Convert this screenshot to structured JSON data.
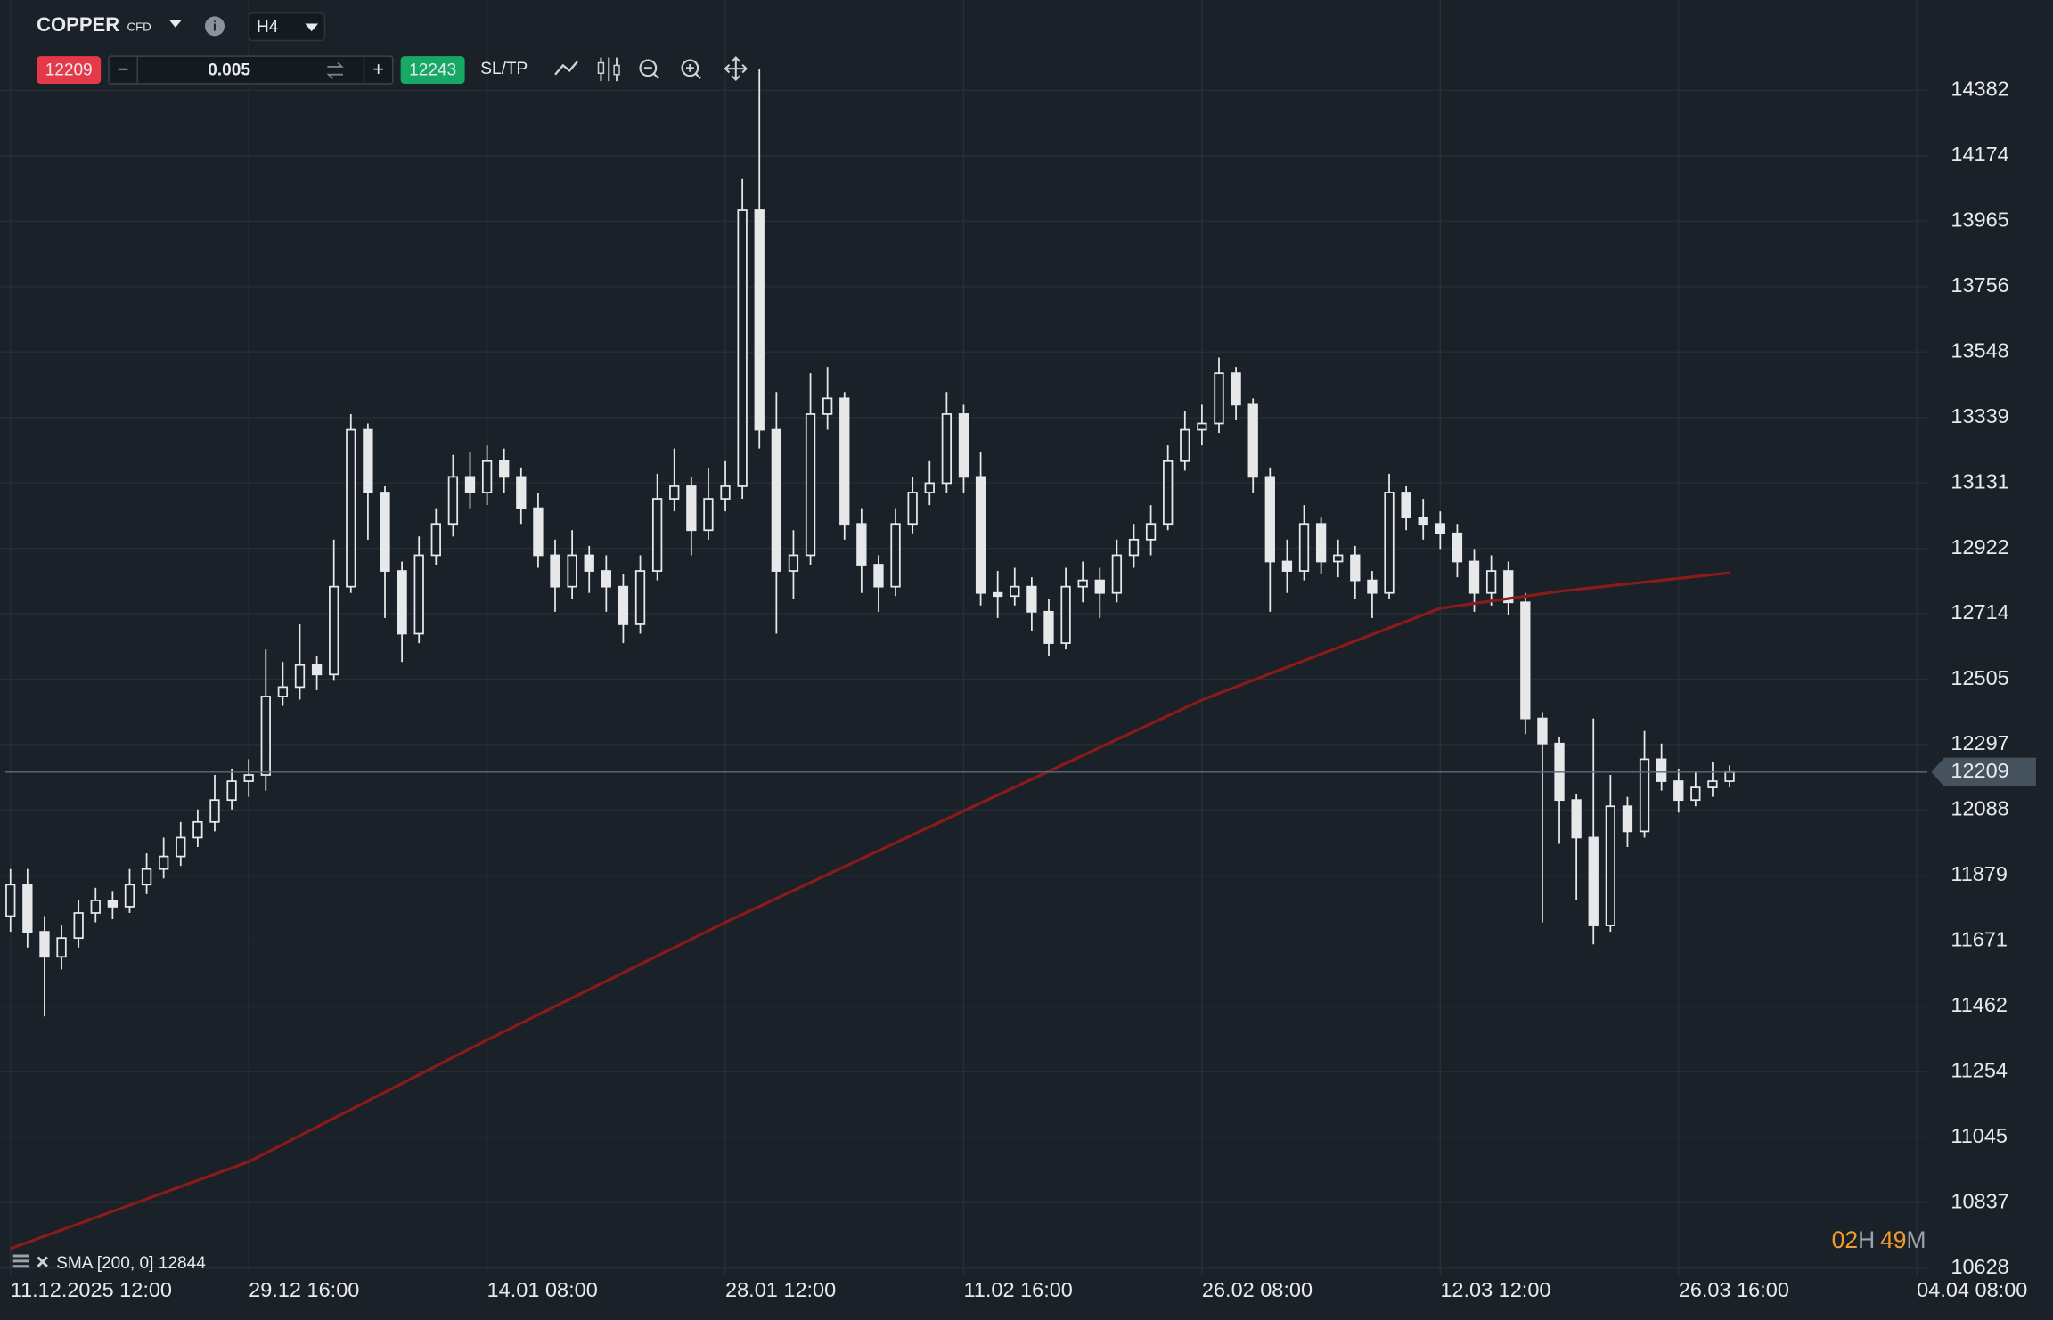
{
  "toolbar": {
    "symbol": "COPPER",
    "symbol_type": "CFD",
    "timeframe": "H4",
    "volume": "0.005",
    "buy_price": 12243,
    "sltp": "SL/TP"
  },
  "countdown": {
    "hours": "02",
    "hours_unit": "H",
    "minutes": "49",
    "minutes_unit": "M"
  },
  "chart_data": {
    "type": "candlestick",
    "current_price": 12209,
    "candle_color": "#e6e8ea",
    "price_line_color": "#5b6b78",
    "grid": true,
    "ylim": [
      10500,
      14670
    ],
    "yticks": [
      10628,
      10837,
      11045,
      11254,
      11462,
      11671,
      11879,
      12088,
      12297,
      12505,
      12714,
      12922,
      13131,
      13339,
      13548,
      13756,
      13965,
      14174,
      14382
    ],
    "xlim": [
      0,
      112
    ],
    "xticks": [
      {
        "value": 0,
        "label": "11.12.2025 12:00"
      },
      {
        "value": 14,
        "label": "29.12 16:00"
      },
      {
        "value": 28,
        "label": "14.01 08:00"
      },
      {
        "value": 42,
        "label": "28.01 12:00"
      },
      {
        "value": 56,
        "label": "11.02 16:00"
      },
      {
        "value": 70,
        "label": "26.02 08:00"
      },
      {
        "value": 84,
        "label": "12.03 12:00"
      },
      {
        "value": 98,
        "label": "26.03 16:00"
      },
      {
        "value": 112,
        "label": "04.04 08:00"
      }
    ],
    "open": [
      11750,
      11850,
      11700,
      11620,
      11680,
      11760,
      11800,
      11780,
      11850,
      11900,
      11940,
      12000,
      12050,
      12120,
      12180,
      12200,
      12450,
      12480,
      12550,
      12520,
      12800,
      13300,
      13100,
      12850,
      12650,
      12900,
      13000,
      13150,
      13100,
      13200,
      13150,
      13050,
      12900,
      12800,
      12900,
      12850,
      12800,
      12680,
      12850,
      13080,
      13120,
      12980,
      13080,
      13120,
      14000,
      13300,
      12850,
      12900,
      13350,
      13400,
      13000,
      12870,
      12800,
      13000,
      13100,
      13130,
      13350,
      13150,
      12780,
      12770,
      12800,
      12720,
      12620,
      12800,
      12820,
      12780,
      12900,
      12950,
      13000,
      13200,
      13300,
      13320,
      13480,
      13380,
      13150,
      12880,
      12850,
      13000,
      12880,
      12900,
      12820,
      12780,
      13100,
      13020,
      13000,
      12970,
      12880,
      12780,
      12850,
      12750,
      12380,
      12300,
      12120,
      12000,
      11720,
      12100,
      12020,
      12250,
      12180,
      12120,
      12160,
      12180
    ],
    "high": [
      11900,
      11900,
      11750,
      11720,
      11800,
      11840,
      11830,
      11900,
      11950,
      12000,
      12050,
      12090,
      12200,
      12220,
      12250,
      12600,
      12560,
      12680,
      12580,
      12950,
      13350,
      13320,
      13120,
      12880,
      12960,
      13050,
      13220,
      13230,
      13250,
      13240,
      13180,
      13100,
      12950,
      12980,
      12930,
      12900,
      12840,
      12900,
      13160,
      13240,
      13150,
      13180,
      13200,
      14100,
      14450,
      13420,
      12980,
      13480,
      13500,
      13420,
      13050,
      12900,
      13050,
      13150,
      13200,
      13420,
      13380,
      13230,
      12850,
      12860,
      12830,
      12760,
      12860,
      12880,
      12860,
      12950,
      13000,
      13060,
      13250,
      13360,
      13380,
      13530,
      13500,
      13400,
      13180,
      12950,
      13060,
      13020,
      12950,
      12930,
      12850,
      13160,
      13120,
      13080,
      13040,
      13000,
      12920,
      12900,
      12880,
      12780,
      12400,
      12320,
      12140,
      12380,
      12200,
      12130,
      12340,
      12300,
      12220,
      12210,
      12240,
      12230
    ],
    "low": [
      11700,
      11650,
      11430,
      11580,
      11650,
      11730,
      11740,
      11760,
      11820,
      11870,
      11910,
      11970,
      12020,
      12090,
      12130,
      12150,
      12420,
      12440,
      12470,
      12500,
      12780,
      12950,
      12700,
      12560,
      12620,
      12870,
      12960,
      13050,
      13060,
      13100,
      13000,
      12860,
      12720,
      12760,
      12780,
      12720,
      12620,
      12650,
      12820,
      13040,
      12900,
      12950,
      13040,
      13080,
      13240,
      12650,
      12760,
      12870,
      13300,
      12950,
      12780,
      12720,
      12770,
      12970,
      13060,
      13100,
      13100,
      12740,
      12700,
      12740,
      12660,
      12580,
      12600,
      12750,
      12700,
      12750,
      12860,
      12900,
      12980,
      13170,
      13250,
      13290,
      13330,
      13100,
      12720,
      12780,
      12820,
      12840,
      12830,
      12760,
      12700,
      12760,
      12980,
      12950,
      12920,
      12830,
      12720,
      12740,
      12710,
      12330,
      11730,
      11980,
      11800,
      11660,
      11700,
      11970,
      12000,
      12150,
      12080,
      12100,
      12130,
      12160
    ],
    "close": [
      11850,
      11700,
      11620,
      11680,
      11760,
      11800,
      11780,
      11850,
      11900,
      11940,
      12000,
      12050,
      12120,
      12180,
      12200,
      12450,
      12480,
      12550,
      12520,
      12800,
      13300,
      13100,
      12850,
      12650,
      12900,
      13000,
      13150,
      13100,
      13200,
      13150,
      13050,
      12900,
      12800,
      12900,
      12850,
      12800,
      12680,
      12850,
      13080,
      13120,
      12980,
      13080,
      13120,
      14000,
      13300,
      12850,
      12900,
      13350,
      13400,
      13000,
      12870,
      12800,
      13000,
      13100,
      13130,
      13350,
      13150,
      12780,
      12770,
      12800,
      12720,
      12620,
      12800,
      12820,
      12780,
      12900,
      12950,
      13000,
      13200,
      13300,
      13320,
      13480,
      13380,
      13150,
      12880,
      12850,
      13000,
      12880,
      12900,
      12820,
      12780,
      13100,
      13020,
      13000,
      12970,
      12880,
      12780,
      12850,
      12750,
      12380,
      12300,
      12120,
      12000,
      11720,
      12100,
      12020,
      12250,
      12180,
      12120,
      12160,
      12180,
      12209
    ],
    "indicator": {
      "name": "SMA [200, 0]",
      "color": "#8b1a1a",
      "x": [
        0,
        14,
        28,
        42,
        56,
        70,
        84,
        91,
        101
      ],
      "values": [
        10690,
        10967,
        11355,
        11730,
        12085,
        12439,
        12731,
        12785,
        12844
      ]
    }
  }
}
